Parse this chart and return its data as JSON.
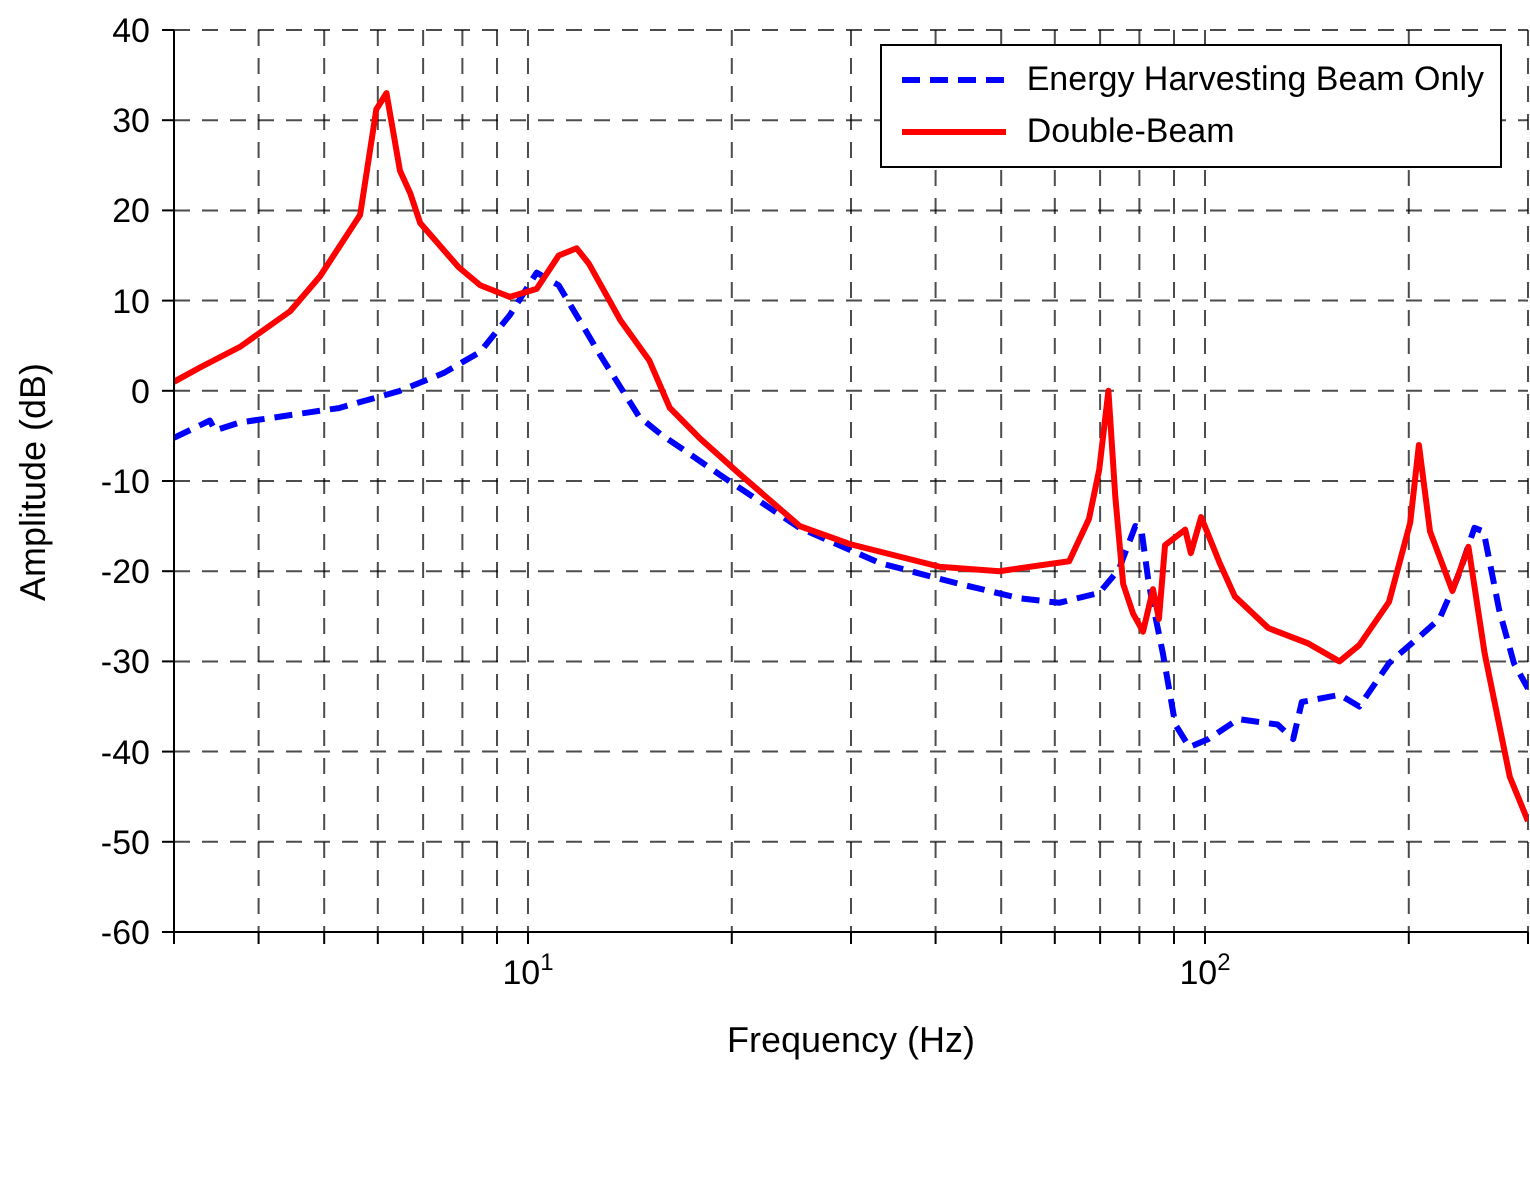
{
  "chart_data": {
    "type": "line",
    "xlabel": "Frequency (Hz)",
    "ylabel": "Amplitude (dB)",
    "log": "x",
    "xlim": [
      3,
      300
    ],
    "ylim": [
      -60,
      40
    ],
    "xticks": [
      {
        "value": 3,
        "label": null
      },
      {
        "value": 4,
        "label": null
      },
      {
        "value": 5,
        "label": null
      },
      {
        "value": 6,
        "label": null
      },
      {
        "value": 7,
        "label": null
      },
      {
        "value": 8,
        "label": null
      },
      {
        "value": 9,
        "label": null
      },
      {
        "value": 10,
        "label": "10$^{1}$"
      },
      {
        "value": 20,
        "label": null
      },
      {
        "value": 30,
        "label": null
      },
      {
        "value": 40,
        "label": null
      },
      {
        "value": 50,
        "label": null
      },
      {
        "value": 60,
        "label": null
      },
      {
        "value": 70,
        "label": null
      },
      {
        "value": 80,
        "label": null
      },
      {
        "value": 90,
        "label": null
      },
      {
        "value": 100,
        "label": "10$^{2}$"
      },
      {
        "value": 200,
        "label": null
      },
      {
        "value": 300,
        "label": null
      }
    ],
    "yticks": [
      -60,
      -50,
      -40,
      -30,
      -20,
      -10,
      0,
      10,
      20,
      30,
      40
    ],
    "grid": true,
    "legend": "top right",
    "marker": "none",
    "series": [
      {
        "name": "Energy Harvesting Beam Only",
        "color": "#0000ff",
        "line_style": "dashed",
        "x": [
          3.0,
          3.39,
          3.45,
          3.76,
          5.27,
          6.47,
          7.52,
          8.5,
          9.4,
          10.3,
          11.1,
          12.8,
          14.6,
          15.7,
          19.2,
          25.2,
          33.1,
          43.3,
          53.2,
          60.9,
          69.8,
          74.6,
          78.9,
          80.5,
          82.6,
          86.7,
          90.4,
          94.8,
          101.2,
          112,
          128,
          135,
          139,
          158,
          169,
          187,
          207,
          222,
          237,
          250,
          258,
          272,
          286,
          300
        ],
        "values": [
          -5.2,
          -3.3,
          -4.4,
          -3.5,
          -1.9,
          0,
          2,
          4.3,
          8.4,
          13.1,
          11.7,
          3.9,
          -2.9,
          -4.8,
          -9.3,
          -15.2,
          -19.1,
          -21.4,
          -23,
          -23.5,
          -22.4,
          -19.8,
          -15,
          -15.2,
          -21.4,
          -29.2,
          -37,
          -39.5,
          -38.6,
          -36.4,
          -37,
          -38.6,
          -34.5,
          -33.7,
          -35,
          -30.2,
          -27.3,
          -25.3,
          -20.4,
          -15.2,
          -15.6,
          -24.3,
          -30.2,
          -33
        ]
      },
      {
        "name": "Double-Beam",
        "color": "#ff0000",
        "line_style": "solid",
        "x": [
          3.0,
          3.28,
          3.76,
          4.45,
          4.93,
          5.65,
          5.97,
          6.18,
          6.47,
          6.7,
          6.93,
          7.9,
          8.5,
          9.4,
          10.3,
          11.1,
          11.8,
          12.3,
          13.7,
          15.1,
          16.2,
          17.9,
          20.6,
          25.2,
          29.9,
          40.5,
          49.7,
          63,
          67.4,
          69.8,
          72,
          73.7,
          75.7,
          78.3,
          81,
          83.8,
          85.5,
          87.3,
          93.5,
          95.3,
          98.7,
          105,
          110.7,
          124,
          142,
          158,
          169,
          187,
          201,
          207,
          215,
          232,
          245,
          259,
          282,
          300
        ],
        "values": [
          1,
          2.6,
          4.9,
          8.8,
          12.7,
          19.5,
          31.2,
          33,
          24.4,
          21.9,
          18.6,
          13.7,
          11.7,
          10.4,
          11.3,
          15,
          15.8,
          14.1,
          7.8,
          3.4,
          -1.9,
          -5.2,
          -9.3,
          -15,
          -17,
          -19.5,
          -20,
          -18.9,
          -14.2,
          -8.7,
          0,
          -11.7,
          -21.4,
          -24.7,
          -26.7,
          -22,
          -25.3,
          -17.1,
          -15.4,
          -18,
          -14,
          -19,
          -22.8,
          -26.3,
          -28,
          -30,
          -28.2,
          -23.4,
          -14.6,
          -6,
          -15.6,
          -22.2,
          -17.3,
          -29.2,
          -42.8,
          -47.7
        ]
      }
    ]
  }
}
